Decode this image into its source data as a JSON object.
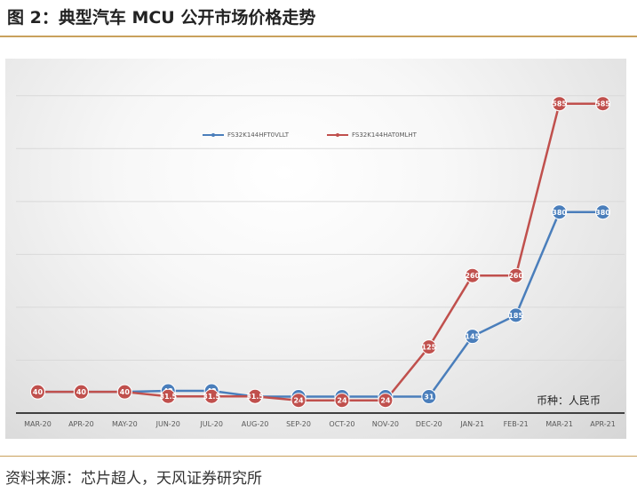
{
  "header": {
    "title": "图 2：典型汽车 MCU 公开市场价格走势"
  },
  "footer": {
    "source": "资料来源：芯片超人，天风证券研究所"
  },
  "colors": {
    "accent_rule": "#c9a15c",
    "series_blue": "#4a7ebb",
    "series_red": "#c0504d",
    "grid": "#d9d9d9",
    "axis": "#404040"
  },
  "chart_data": {
    "type": "line",
    "title": "",
    "xlabel": "",
    "ylabel": "",
    "categories": [
      "MAR-20",
      "APR-20",
      "MAY-20",
      "JUN-20",
      "JUL-20",
      "AUG-20",
      "SEP-20",
      "OCT-20",
      "NOV-20",
      "DEC-20",
      "JAN-21",
      "FEB-21",
      "MAR-21",
      "APR-21"
    ],
    "ylim": [
      0,
      650
    ],
    "grid": true,
    "legend_position": "top-left",
    "annotation": "币种：人民币",
    "series": [
      {
        "name": "FS32K144HFT0VLLT",
        "color": "#4a7ebb",
        "values": [
          40,
          40,
          40,
          42,
          42,
          31,
          31,
          31,
          31,
          31,
          145,
          185,
          380,
          380
        ],
        "labels": [
          "40",
          "40",
          "40",
          "42",
          "42",
          "31",
          "31",
          "31",
          "31",
          "31",
          "145",
          "185",
          "380",
          "380"
        ]
      },
      {
        "name": "FS32K144HAT0MLHT",
        "color": "#c0504d",
        "values": [
          40,
          40,
          40,
          31.5,
          31.5,
          31.5,
          24,
          24,
          24,
          125,
          260,
          260,
          585,
          585
        ],
        "labels": [
          "40",
          "40",
          "40",
          "31.5",
          "31.5",
          "31.5",
          "24",
          "24",
          "24",
          "125",
          "260",
          "260",
          "585",
          "585"
        ]
      }
    ]
  }
}
